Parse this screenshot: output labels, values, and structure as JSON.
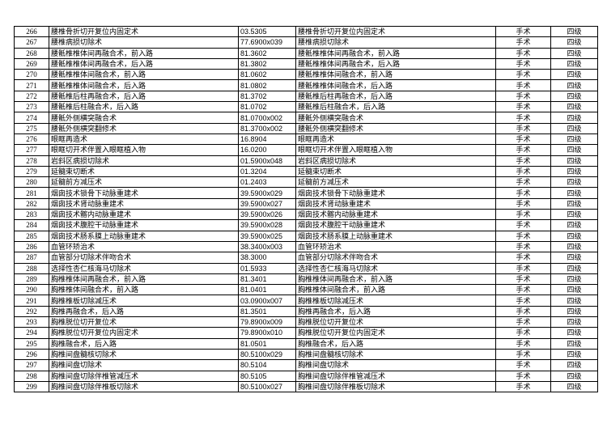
{
  "table": {
    "rows": [
      [
        "266",
        "腰椎骨折切开复位内固定术",
        "03.5305",
        "腰椎骨折切开复位内固定术",
        "手术",
        "四级"
      ],
      [
        "267",
        "腰椎病损切除术",
        "77.6900x039",
        "腰椎病损切除术",
        "手术",
        "四级"
      ],
      [
        "268",
        "腰骶椎椎体间再融合术，前入路",
        "81.3602",
        "腰骶椎椎体间再融合术，前入路",
        "手术",
        "四级"
      ],
      [
        "269",
        "腰骶椎椎体间再融合术，后入路",
        "81.3802",
        "腰骶椎椎体间再融合术，后入路",
        "手术",
        "四级"
      ],
      [
        "270",
        "腰骶椎椎体间融合术，前入路",
        "81.0602",
        "腰骶椎椎体间融合术，前入路",
        "手术",
        "四级"
      ],
      [
        "271",
        "腰骶椎椎体间融合术，后入路",
        "81.0802",
        "腰骶椎椎体间融合术，后入路",
        "手术",
        "四级"
      ],
      [
        "272",
        "腰骶椎后柱再融合术，后入路",
        "81.3702",
        "腰骶椎后柱再融合术，后入路",
        "手术",
        "四级"
      ],
      [
        "273",
        "腰骶椎后柱融合术，后入路",
        "81.0702",
        "腰骶椎后柱融合术，后入路",
        "手术",
        "四级"
      ],
      [
        "274",
        "腰骶外侧横突融合术",
        "81.0700x002",
        "腰骶外侧横突融合术",
        "手术",
        "四级"
      ],
      [
        "275",
        "腰骶外侧横突翻修术",
        "81.3700x002",
        "腰骶外侧横突翻修术",
        "手术",
        "四级"
      ],
      [
        "276",
        "眼眶再造术",
        "16.8904",
        "眼眶再造术",
        "手术",
        "四级"
      ],
      [
        "277",
        "眼眶切开术伴置入眼眶植入物",
        "16.0200",
        "眼眶切开术伴置入眼眶植入物",
        "手术",
        "四级"
      ],
      [
        "278",
        "岩斜区病损切除术",
        "01.5900x048",
        "岩斜区病损切除术",
        "手术",
        "四级"
      ],
      [
        "279",
        "延髓束切断术",
        "01.3204",
        "延髓束切断术",
        "手术",
        "四级"
      ],
      [
        "280",
        "延髓前方减压术",
        "01.2403",
        "延髓前方减压术",
        "手术",
        "四级"
      ],
      [
        "281",
        "烟囱技术锁骨下动脉重建术",
        "39.5900x029",
        "烟囱技术锁骨下动脉重建术",
        "手术",
        "四级"
      ],
      [
        "282",
        "烟囱技术肾动脉重建术",
        "39.5900x027",
        "烟囱技术肾动脉重建术",
        "手术",
        "四级"
      ],
      [
        "283",
        "烟囱技术髂内动脉重建术",
        "39.5900x026",
        "烟囱技术髂内动脉重建术",
        "手术",
        "四级"
      ],
      [
        "284",
        "烟囱技术腹腔干动脉重建术",
        "39.5900x028",
        "烟囱技术腹腔干动脉重建术",
        "手术",
        "四级"
      ],
      [
        "285",
        "烟囱技术肠系膜上动脉重建术",
        "39.5900x025",
        "烟囱技术肠系膜上动脉重建术",
        "手术",
        "四级"
      ],
      [
        "286",
        "血管环矫治术",
        "38.3400x003",
        "血管环矫治术",
        "手术",
        "四级"
      ],
      [
        "287",
        "血管部分切除术伴吻合术",
        "38.3000",
        "血管部分切除术伴吻合术",
        "手术",
        "四级"
      ],
      [
        "288",
        "选择性杏仁核海马切除术",
        "01.5933",
        "选择性杏仁核海马切除术",
        "手术",
        "四级"
      ],
      [
        "289",
        "胸椎椎体间再融合术，前入路",
        "81.3401",
        "胸椎椎体间再融合术，前入路",
        "手术",
        "四级"
      ],
      [
        "290",
        "胸椎椎体间融合术，前入路",
        "81.0401",
        "胸椎椎体间融合术，前入路",
        "手术",
        "四级"
      ],
      [
        "291",
        "胸椎椎板切除减压术",
        "03.0900x007",
        "胸椎椎板切除减压术",
        "手术",
        "四级"
      ],
      [
        "292",
        "胸椎再融合术，后入路",
        "81.3501",
        "胸椎再融合术，后入路",
        "手术",
        "四级"
      ],
      [
        "293",
        "胸椎脱位切开复位术",
        "79.8900x009",
        "胸椎脱位切开复位术",
        "手术",
        "四级"
      ],
      [
        "294",
        "胸椎脱位切开复位内固定术",
        "79.8900x010",
        "胸椎脱位切开复位内固定术",
        "手术",
        "四级"
      ],
      [
        "295",
        "胸椎融合术，后入路",
        "81.0501",
        "胸椎融合术，后入路",
        "手术",
        "四级"
      ],
      [
        "296",
        "胸椎间盘髓核切除术",
        "80.5100x029",
        "胸椎间盘髓核切除术",
        "手术",
        "四级"
      ],
      [
        "297",
        "胸椎间盘切除术",
        "80.5104",
        "胸椎间盘切除术",
        "手术",
        "四级"
      ],
      [
        "298",
        "胸椎间盘切除伴椎管减压术",
        "80.5105",
        "胸椎间盘切除伴椎管减压术",
        "手术",
        "四级"
      ],
      [
        "299",
        "胸椎间盘切除伴椎板切除术",
        "80.5100x027",
        "胸椎间盘切除伴椎板切除术",
        "手术",
        "四级"
      ]
    ]
  }
}
